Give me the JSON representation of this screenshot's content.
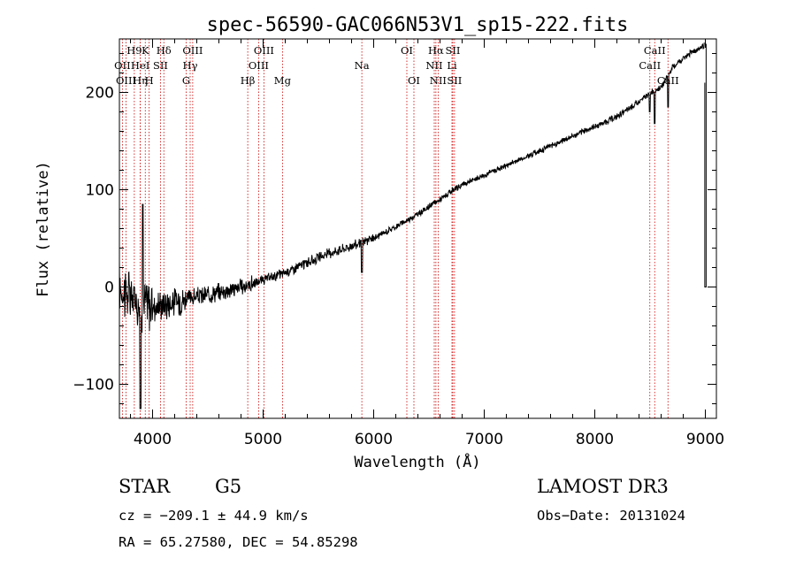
{
  "chart_data": {
    "type": "line",
    "title": "spec-56590-GAC066N53V1_sp15-222.fits",
    "xlabel": "Wavelength (Å)",
    "ylabel": "Flux (relative)",
    "xlim": [
      3700,
      9100
    ],
    "ylim": [
      -135,
      255
    ],
    "xticks": [
      {
        "value": 4000,
        "label": "4000"
      },
      {
        "value": 5000,
        "label": "5000"
      },
      {
        "value": 6000,
        "label": "6000"
      },
      {
        "value": 7000,
        "label": "7000"
      },
      {
        "value": 8000,
        "label": "8000"
      },
      {
        "value": 9000,
        "label": "9000"
      }
    ],
    "yticks": [
      {
        "value": -100,
        "label": "−100"
      },
      {
        "value": 0,
        "label": "0"
      },
      {
        "value": 100,
        "label": "100"
      },
      {
        "value": 200,
        "label": "200"
      }
    ],
    "spectrum_trend": {
      "x": [
        3700,
        3800,
        3900,
        4000,
        4100,
        4200,
        4300,
        4400,
        4500,
        4600,
        4700,
        4800,
        4900,
        5000,
        5200,
        5400,
        5600,
        5800,
        6000,
        6200,
        6400,
        6600,
        6800,
        7000,
        7200,
        7400,
        7600,
        7800,
        8000,
        8200,
        8400,
        8500,
        8600,
        8700,
        8800,
        8900,
        8990
      ],
      "y": [
        0,
        -10,
        -15,
        -20,
        -18,
        -15,
        -12,
        -10,
        -8,
        -5,
        -3,
        0,
        3,
        7,
        15,
        25,
        35,
        42,
        50,
        62,
        75,
        90,
        105,
        115,
        125,
        135,
        145,
        155,
        165,
        175,
        190,
        200,
        205,
        225,
        235,
        243,
        248
      ]
    },
    "spectral_lines": [
      {
        "label": "H9",
        "wavelength": 3835,
        "row": 0
      },
      {
        "label": "OII",
        "wavelength": 3727,
        "row": 1
      },
      {
        "label": "OIII",
        "wavelength": 3760,
        "row": 2
      },
      {
        "label": "K",
        "wavelength": 3934,
        "row": 0
      },
      {
        "label": "H",
        "wavelength": 3969,
        "row": 2
      },
      {
        "label": "Hη",
        "wavelength": 3889,
        "row": 2
      },
      {
        "label": "HeI",
        "wavelength": 3889,
        "row": 1
      },
      {
        "label": "SII",
        "wavelength": 4072,
        "row": 1
      },
      {
        "label": "Hδ",
        "wavelength": 4102,
        "row": 0
      },
      {
        "label": "OIII",
        "wavelength": 4363,
        "row": 0
      },
      {
        "label": "Hγ",
        "wavelength": 4340,
        "row": 1
      },
      {
        "label": "G",
        "wavelength": 4304,
        "row": 2
      },
      {
        "label": "Hβ",
        "wavelength": 4861,
        "row": 2
      },
      {
        "label": "OIII",
        "wavelength": 5007,
        "row": 0
      },
      {
        "label": "OIII",
        "wavelength": 4959,
        "row": 1
      },
      {
        "label": "Mg",
        "wavelength": 5175,
        "row": 2
      },
      {
        "label": "Na",
        "wavelength": 5893,
        "row": 1
      },
      {
        "label": "OI",
        "wavelength": 6300,
        "row": 0
      },
      {
        "label": "OI",
        "wavelength": 6364,
        "row": 2
      },
      {
        "label": "Hα",
        "wavelength": 6563,
        "row": 0
      },
      {
        "label": "SII",
        "wavelength": 6716,
        "row": 0
      },
      {
        "label": "NII",
        "wavelength": 6548,
        "row": 1
      },
      {
        "label": "Li",
        "wavelength": 6708,
        "row": 1
      },
      {
        "label": "NII",
        "wavelength": 6583,
        "row": 2
      },
      {
        "label": "SII",
        "wavelength": 6731,
        "row": 2
      },
      {
        "label": "CaII",
        "wavelength": 8542,
        "row": 0
      },
      {
        "label": "CaII",
        "wavelength": 8498,
        "row": 1
      },
      {
        "label": "CaII",
        "wavelength": 8662,
        "row": 2
      }
    ]
  },
  "info": {
    "object_class": "STAR",
    "subclass": "G5",
    "survey": "LAMOST DR3",
    "redshift": "cz = −209.1 ± 44.9 km/s",
    "obs_date": "Obs−Date: 20131024",
    "coords": "RA =  65.27580, DEC =  54.85298"
  },
  "colors": {
    "line_marker": "#cc0000",
    "spectrum": "#000000",
    "axes": "#000000"
  }
}
